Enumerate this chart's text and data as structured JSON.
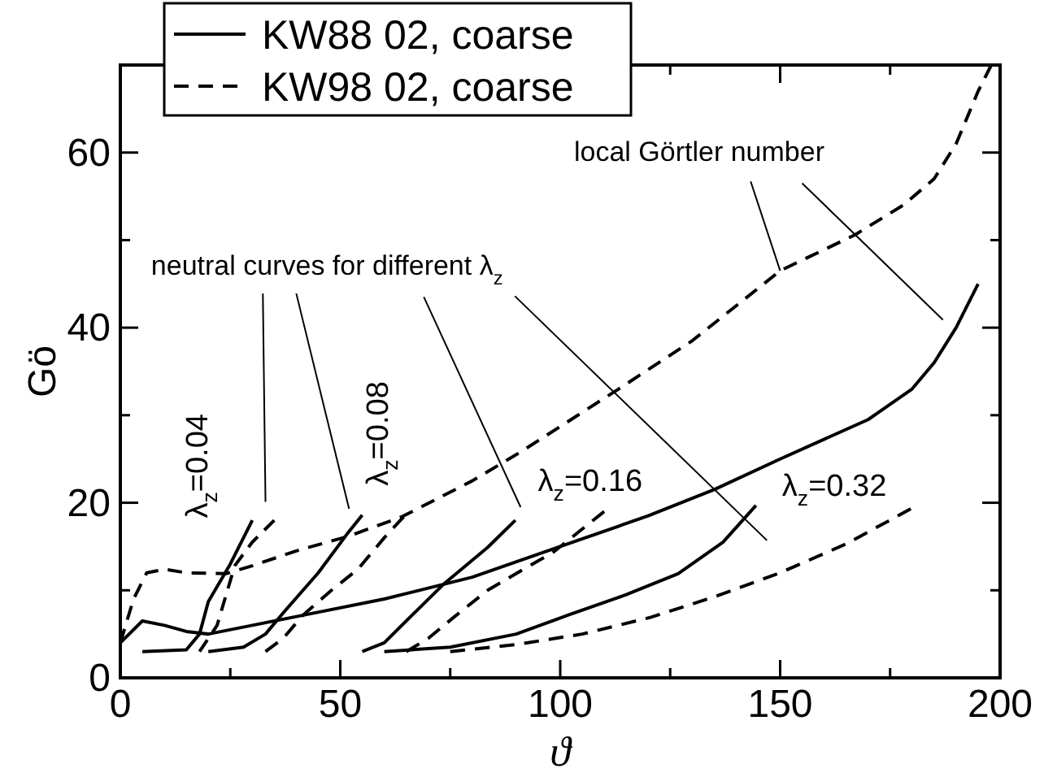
{
  "chart_data": {
    "type": "line",
    "xlabel": "ϑ",
    "ylabel": "Gö",
    "xlim": [
      0,
      200
    ],
    "ylim": [
      0,
      70
    ],
    "xticks": [
      0,
      {
        "value": 25,
        "label": null
      },
      50,
      {
        "value": 75,
        "label": null
      },
      100,
      {
        "value": 125,
        "label": null
      },
      150,
      {
        "value": 175,
        "label": null
      },
      200
    ],
    "yticks": [
      0,
      {
        "value": 10,
        "label": null
      },
      20,
      {
        "value": 30,
        "label": null
      },
      40,
      {
        "value": 50,
        "label": null
      },
      60,
      {
        "value": 70,
        "label": null
      }
    ],
    "legend": "top left",
    "grid": false,
    "marker": "none",
    "series": [
      {
        "name": "KW88 02, coarse",
        "color": "#000000",
        "line_style": "solid",
        "x": [
          0,
          5,
          10,
          15,
          20,
          30,
          40,
          60,
          80,
          100,
          120,
          135,
          150,
          170,
          180,
          185,
          190,
          195
        ],
        "values": [
          4,
          6.5,
          6,
          5.3,
          5,
          6,
          7,
          9,
          11.5,
          15,
          18.5,
          21.5,
          25,
          29.5,
          33,
          36,
          40,
          45
        ]
      },
      {
        "name": "KW98 02, coarse",
        "color": "#000000",
        "line_style": "dashed",
        "x": [
          0,
          3,
          6,
          10,
          15,
          24,
          30,
          40,
          52,
          64,
          80,
          91,
          113,
          130,
          150,
          167,
          178,
          185,
          190,
          195,
          198
        ],
        "values": [
          4,
          9,
          12,
          12.4,
          12,
          11.9,
          12.8,
          14.5,
          16.2,
          18.4,
          22.5,
          25.8,
          32.9,
          38.5,
          46.5,
          50.6,
          54,
          57,
          61,
          67,
          70
        ]
      },
      {
        "color": "#000000",
        "line_style": "solid",
        "x": [
          5,
          15,
          18,
          20,
          25,
          30
        ],
        "values": [
          3,
          3.2,
          5,
          8.7,
          13,
          18
        ]
      },
      {
        "color": "#000000",
        "line_style": "dashed",
        "x": [
          18,
          22,
          26,
          30,
          35
        ],
        "values": [
          3,
          6,
          12.8,
          15.5,
          18
        ]
      },
      {
        "color": "#000000",
        "line_style": "solid",
        "x": [
          20,
          28,
          33,
          37,
          45,
          51.5,
          55
        ],
        "values": [
          3,
          3.5,
          5,
          7.4,
          12,
          16.4,
          18.6
        ]
      },
      {
        "color": "#000000",
        "line_style": "dashed",
        "x": [
          33,
          37,
          41.6,
          48,
          54,
          60,
          64.4
        ],
        "values": [
          3,
          4.5,
          7.2,
          10,
          12.4,
          16,
          18.4
        ]
      },
      {
        "color": "#000000",
        "line_style": "solid",
        "x": [
          55,
          60,
          66,
          73.7,
          83.5,
          89.8
        ],
        "values": [
          3,
          4,
          7,
          10.8,
          14.9,
          18
        ]
      },
      {
        "color": "#000000",
        "line_style": "dashed",
        "x": [
          65,
          70,
          76,
          83.5,
          92,
          98.3,
          110
        ],
        "values": [
          3,
          4.5,
          7,
          10,
          12.5,
          14.3,
          19
        ]
      },
      {
        "color": "#000000",
        "line_style": "solid",
        "x": [
          60,
          75,
          90,
          102,
          115,
          126.8,
          137,
          144.5
        ],
        "values": [
          3,
          3.5,
          5,
          7.2,
          9.5,
          11.9,
          15.5,
          19.7
        ]
      },
      {
        "color": "#000000",
        "line_style": "dashed",
        "x": [
          75,
          90,
          105,
          120.5,
          135.3,
          150,
          165,
          179.7
        ],
        "values": [
          3,
          3.8,
          5,
          6.9,
          9.3,
          12,
          15.3,
          19.3
        ]
      }
    ],
    "annotations": [
      "neutral curves for different λ$_{z}$",
      {
        "text": "local Görtler number",
        "x": 150,
        "y": 46.5
      },
      "λ$_{z}$=0.04",
      "λ$_{z}$=0.08",
      "λ$_{z}$=0.16",
      "λ$_{z}$=0.32"
    ]
  }
}
